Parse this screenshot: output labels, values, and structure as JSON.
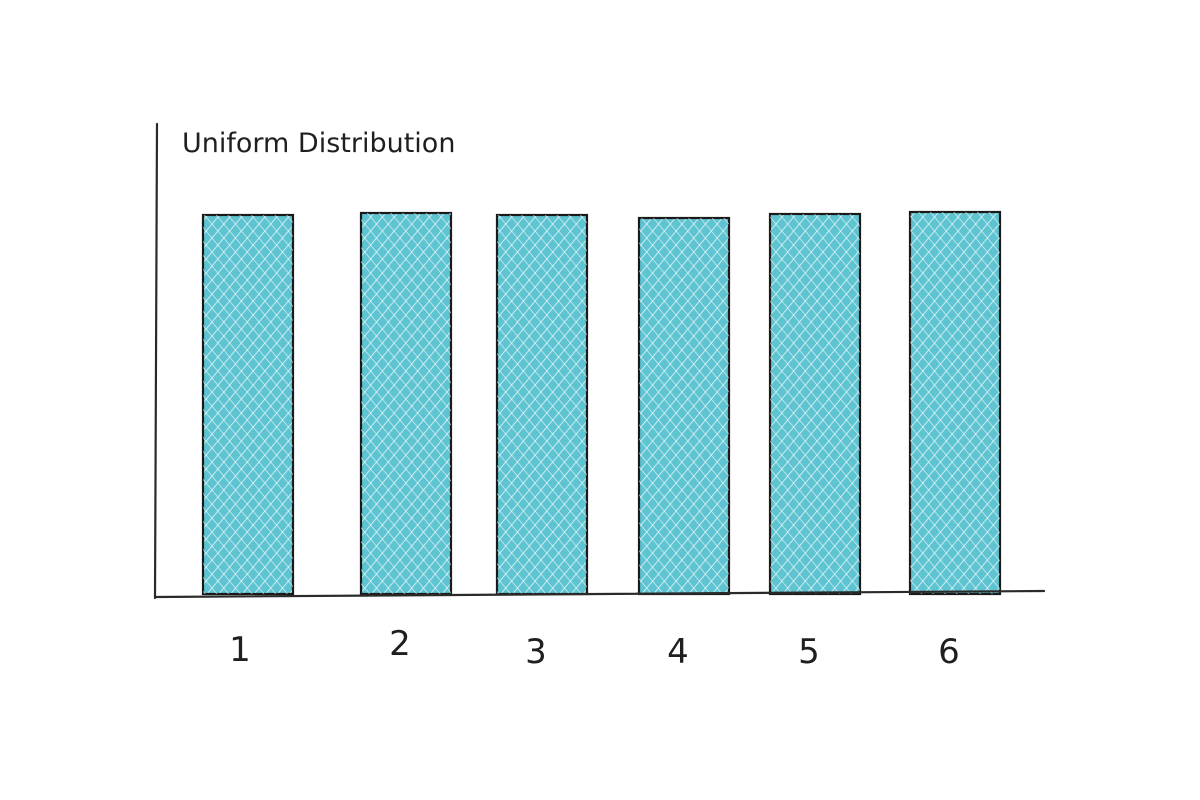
{
  "colors": {
    "bar_fill": "#5ec4d2",
    "hatch": "#ffffff",
    "outline": "#1a1a1a"
  },
  "chart_data": {
    "type": "bar",
    "title": "Uniform Distribution",
    "categories": [
      "1",
      "2",
      "3",
      "4",
      "5",
      "6"
    ],
    "values": [
      1,
      1,
      1,
      1,
      1,
      1
    ],
    "xlabel": "",
    "ylabel": "",
    "ylim": [
      0,
      1.2
    ],
    "grid": false,
    "legend": "none"
  }
}
